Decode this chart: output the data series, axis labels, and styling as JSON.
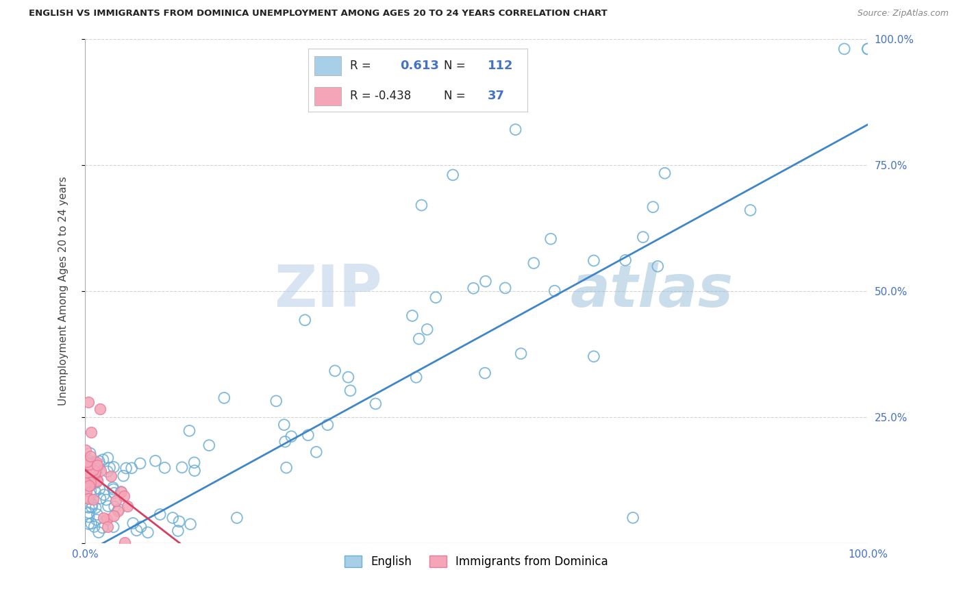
{
  "title": "ENGLISH VS IMMIGRANTS FROM DOMINICA UNEMPLOYMENT AMONG AGES 20 TO 24 YEARS CORRELATION CHART",
  "source": "Source: ZipAtlas.com",
  "ylabel": "Unemployment Among Ages 20 to 24 years",
  "watermark_zip": "ZIP",
  "watermark_atlas": "atlas",
  "english_R": 0.613,
  "english_N": 112,
  "dominica_R": -0.438,
  "dominica_N": 37,
  "english_color": "#a8cfe8",
  "english_edge_color": "#6aaed6",
  "dominica_color": "#f4a6b8",
  "dominica_edge_color": "#e87a9a",
  "english_line_color": "#3f86c8",
  "dominica_line_color": "#d44060",
  "axis_tick_color": "#4472c4",
  "grid_color": "#c8c8c8",
  "background_color": "#ffffff",
  "legend_box_color": "#f0f0f0",
  "legend_border_color": "#cccccc"
}
